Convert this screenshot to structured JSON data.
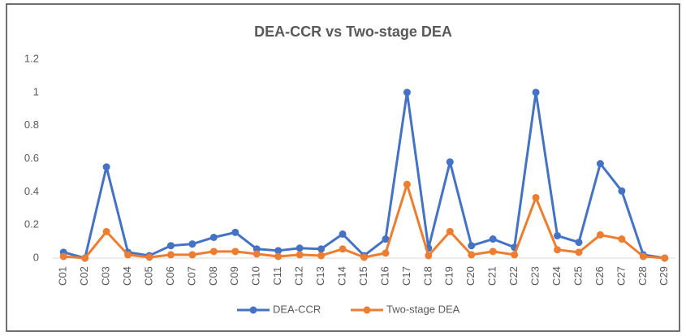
{
  "chart_data": {
    "type": "line",
    "title": "DEA-CCR vs Two-stage DEA",
    "categories": [
      "C01",
      "C02",
      "C03",
      "C04",
      "C05",
      "C06",
      "C07",
      "C08",
      "C09",
      "C10",
      "C11",
      "C12",
      "C13",
      "C14",
      "C15",
      "C16",
      "C17",
      "C18",
      "C19",
      "C20",
      "C21",
      "C22",
      "C23",
      "C24",
      "C25",
      "C26",
      "C27",
      "C28",
      "C29"
    ],
    "series": [
      {
        "name": "DEA-CCR",
        "color": "#4472c4",
        "values": [
          0.035,
          0,
          0.55,
          0.035,
          0.015,
          0.075,
          0.085,
          0.125,
          0.155,
          0.055,
          0.045,
          0.06,
          0.055,
          0.145,
          0.015,
          0.115,
          1,
          0.06,
          0.58,
          0.075,
          0.115,
          0.065,
          1,
          0.135,
          0.095,
          0.57,
          0.405,
          0.02,
          0
        ]
      },
      {
        "name": "Two-stage DEA",
        "color": "#ed7d31",
        "values": [
          0.01,
          0,
          0.16,
          0.02,
          0.005,
          0.02,
          0.02,
          0.04,
          0.04,
          0.025,
          0.01,
          0.02,
          0.015,
          0.055,
          0.005,
          0.03,
          0.445,
          0.015,
          0.16,
          0.02,
          0.04,
          0.02,
          0.365,
          0.05,
          0.035,
          0.14,
          0.115,
          0.01,
          0
        ]
      }
    ],
    "ylim": [
      0,
      1.2
    ],
    "yticks": [
      0,
      0.2,
      0.4,
      0.6,
      0.8,
      1,
      1.2
    ],
    "grid": false,
    "legend": "bottom"
  }
}
